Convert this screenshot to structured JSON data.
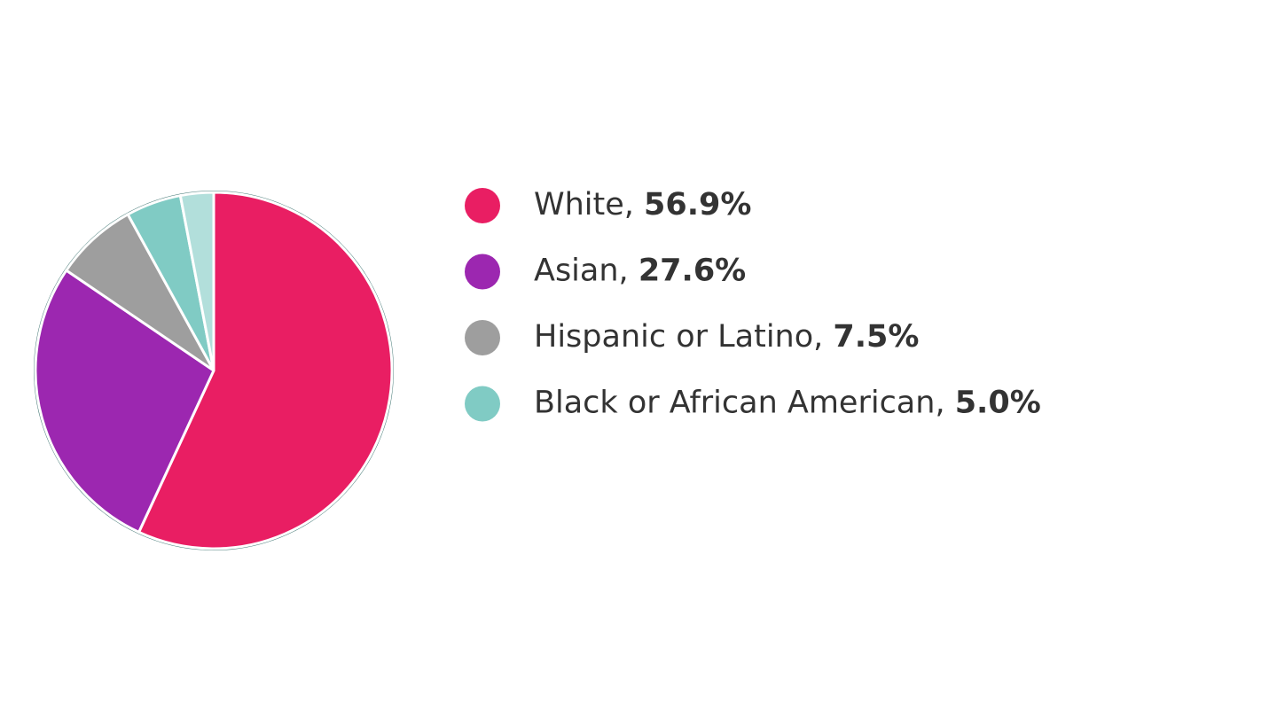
{
  "chart_data": {
    "type": "pie",
    "categories": [
      "White",
      "Asian",
      "Hispanic or Latino",
      "Black or African American",
      null
    ],
    "values": [
      56.9,
      27.6,
      7.5,
      5.0,
      3.0
    ],
    "value_labels": [
      "56.9%",
      "27.6%",
      "7.5%",
      "5.0%",
      null
    ],
    "colors": [
      "#e91e63",
      "#9c27b0",
      "#9e9e9e",
      "#80cbc4",
      "#b2dfdb"
    ],
    "legend_separator": ", ",
    "legend": "right"
  }
}
